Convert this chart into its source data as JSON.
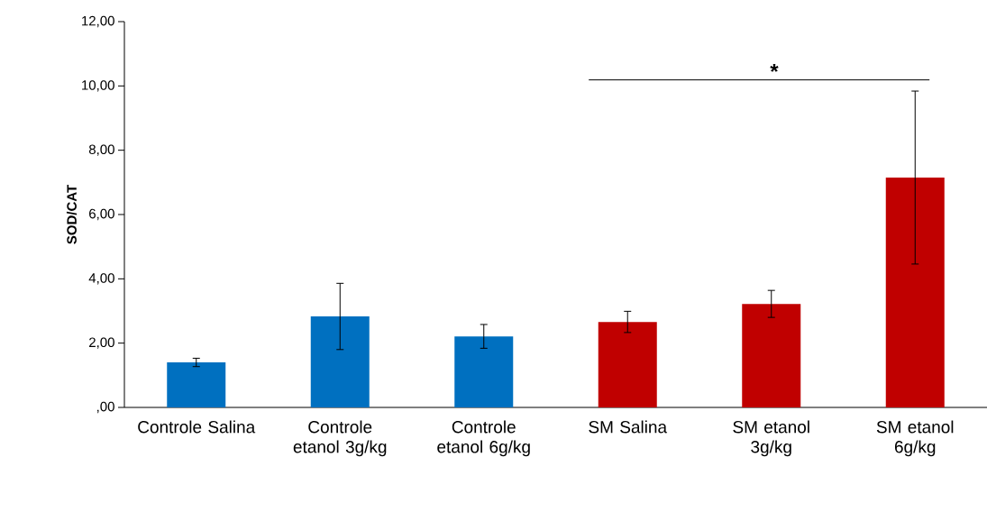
{
  "chart_data": {
    "type": "bar",
    "ylabel": "SOD/CAT",
    "categories": [
      "Controle Salina",
      "Controle etanol 3g/kg",
      "Controle etanol 6g/kg",
      "SM Salina",
      "SM etanol 3g/kg",
      "SM etanol 6g/kg"
    ],
    "values": [
      1.4,
      2.83,
      2.21,
      2.66,
      3.22,
      7.15
    ],
    "errors": [
      0.13,
      1.03,
      0.37,
      0.33,
      0.42,
      2.69
    ],
    "colors": [
      "#0070c0",
      "#0070c0",
      "#0070c0",
      "#c00000",
      "#c00000",
      "#c00000"
    ],
    "ylim": [
      0,
      12
    ],
    "yticks": [
      {
        "value": 0,
        "label": ",00"
      },
      {
        "value": 2,
        "label": "2,00"
      },
      {
        "value": 4,
        "label": "4,00"
      },
      {
        "value": 6,
        "label": "6,00"
      },
      {
        "value": 8,
        "label": "8,00"
      },
      {
        "value": 10,
        "label": "10,00"
      },
      {
        "value": 12,
        "label": "12,00"
      }
    ],
    "annotations": [
      "*"
    ]
  }
}
